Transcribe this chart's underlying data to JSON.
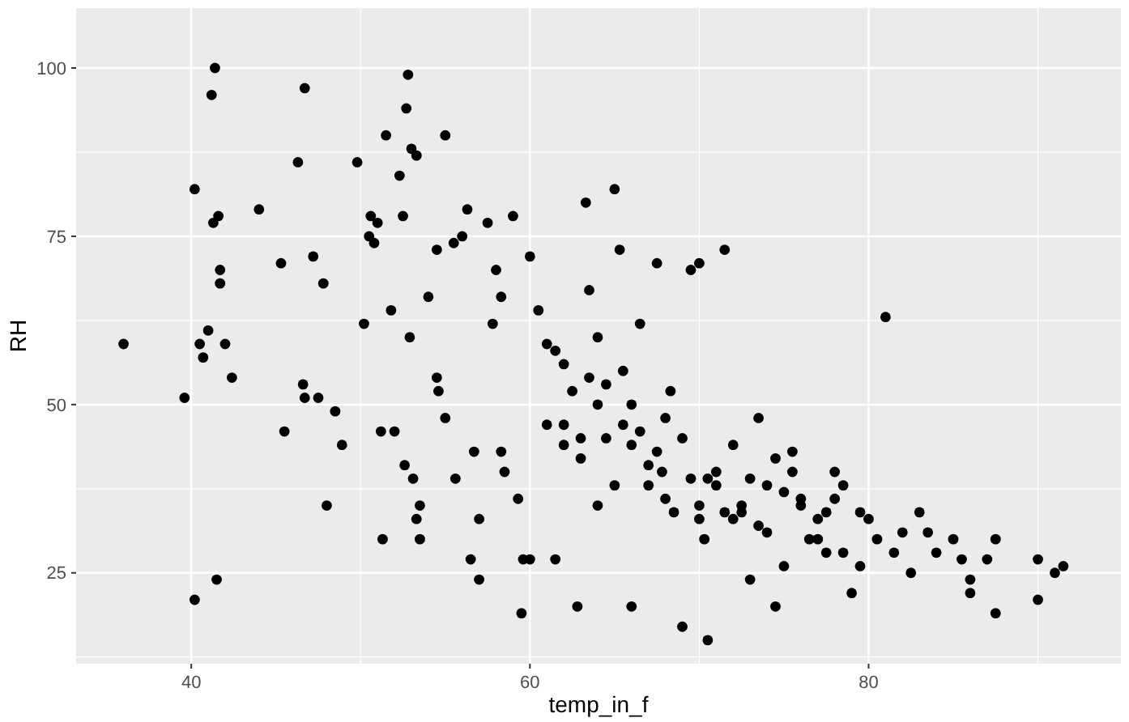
{
  "chart_data": {
    "type": "scatter",
    "xlabel": "temp_in_f",
    "ylabel": "RH",
    "xlim": [
      33.2,
      94.9
    ],
    "ylim": [
      11.5,
      108.9
    ],
    "xticks": [
      40,
      60,
      80
    ],
    "yticks": [
      25,
      50,
      75,
      100
    ],
    "grid": true,
    "marker": "circle",
    "series": [
      {
        "color": "#000000",
        "x": [
          36,
          39.6,
          40.2,
          40.2,
          40.5,
          40.7,
          41,
          41.2,
          41.3,
          41.4,
          41.5,
          41.6,
          41.7,
          41.7,
          42,
          42.4,
          44,
          45.3,
          45.5,
          46.3,
          46.6,
          46.7,
          46.7,
          47.2,
          47.5,
          47.8,
          48,
          48.5,
          48.9,
          49.8,
          50.2,
          50.5,
          50.6,
          50.8,
          51,
          51.2,
          51.3,
          51.5,
          51.8,
          52,
          52.3,
          52.5,
          52.6,
          52.7,
          52.8,
          52.9,
          53,
          53.1,
          53.3,
          53.5,
          53.3,
          53.5,
          54,
          54.5,
          54.6,
          54.5,
          55,
          55.5,
          55,
          55.6,
          56,
          56.3,
          56.5,
          56.7,
          57,
          57,
          57.5,
          57.8,
          58,
          58.3,
          58.3,
          58.5,
          59,
          59.3,
          59.6,
          59.5,
          60,
          60,
          60.5,
          61,
          61,
          61.5,
          62,
          62,
          62.5,
          62.8,
          63,
          63.3,
          63.5,
          64,
          64,
          64.5,
          65,
          65.3,
          65.5,
          66,
          66,
          66.5,
          67,
          67.5,
          67.8,
          68,
          68.3,
          69,
          69.5,
          70,
          70,
          70.3,
          70.5,
          71,
          71.5,
          72,
          72.5,
          73,
          73.5,
          74,
          74.5,
          75,
          75.5,
          76,
          77,
          77.5,
          78,
          78.5,
          79,
          79.5,
          80,
          81,
          81.5,
          82,
          82.5,
          83,
          84,
          85,
          86,
          86,
          87,
          87.5,
          87.5,
          90,
          90,
          91,
          91.5,
          62,
          63,
          64,
          65,
          66,
          67,
          68,
          69,
          70,
          71,
          72,
          73,
          74,
          75,
          76,
          77,
          78,
          63.5,
          65.5,
          67.5,
          69.5,
          71.5,
          73.5,
          75.5,
          77.5,
          79.5,
          61.5,
          64.5,
          66.5,
          68.5,
          70.5,
          72.5,
          74.5,
          76.5,
          78.5,
          80.5,
          83.5,
          85.5
        ],
        "values": [
          59,
          51,
          82,
          21,
          59,
          57,
          61,
          96,
          77,
          100,
          24,
          78,
          70,
          68,
          59,
          54,
          79,
          71,
          46,
          86,
          53,
          97,
          51,
          72,
          51,
          68,
          35,
          49,
          44,
          86,
          62,
          75,
          78,
          74,
          77,
          46,
          30,
          90,
          64,
          46,
          84,
          78,
          41,
          94,
          99,
          60,
          88,
          39,
          33,
          35,
          87,
          30,
          66,
          54,
          52,
          73,
          90,
          74,
          48,
          39,
          75,
          79,
          27,
          43,
          33,
          24,
          77,
          62,
          70,
          66,
          43,
          40,
          78,
          36,
          27,
          19,
          72,
          27,
          64,
          59,
          47,
          27,
          56,
          44,
          52,
          20,
          45,
          80,
          67,
          60,
          35,
          45,
          82,
          73,
          55,
          50,
          20,
          62,
          38,
          71,
          40,
          48,
          52,
          17,
          70,
          71,
          33,
          30,
          15,
          38,
          73,
          44,
          35,
          24,
          48,
          38,
          20,
          26,
          43,
          36,
          33,
          34,
          40,
          28,
          22,
          26,
          33,
          63,
          28,
          31,
          25,
          34,
          28,
          30,
          24,
          22,
          27,
          30,
          19,
          27,
          21,
          25,
          26,
          47,
          42,
          50,
          38,
          44,
          41,
          36,
          45,
          35,
          40,
          33,
          39,
          31,
          37,
          35,
          30,
          36,
          54,
          47,
          43,
          39,
          34,
          32,
          40,
          28,
          34,
          58,
          53,
          46,
          34,
          39,
          34,
          42,
          30,
          38,
          30,
          31,
          27
        ]
      }
    ]
  }
}
